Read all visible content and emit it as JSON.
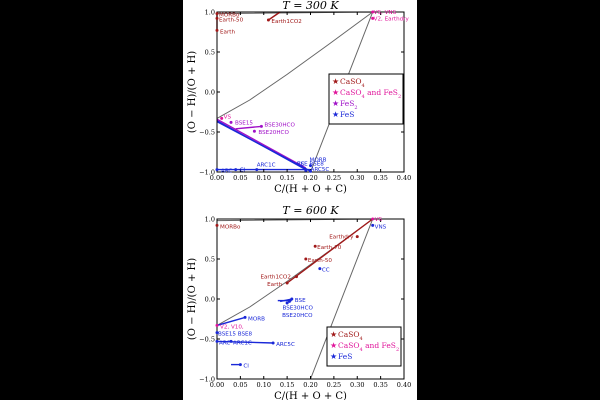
{
  "chart_data": [
    {
      "type": "scatter",
      "title": "T = 300 K",
      "xlabel": "C/(H + O + C)",
      "ylabel": "(O − H)/(O + H)",
      "xlim": [
        0.0,
        0.4
      ],
      "ylim": [
        -1.0,
        1.0
      ],
      "xticks": [
        "0.00",
        "0.05",
        "0.10",
        "0.15",
        "0.20",
        "0.25",
        "0.30",
        "0.35",
        "0.40"
      ],
      "yticks": [
        "−1.0",
        "−0.5",
        "0.0",
        "0.5",
        "1.0"
      ],
      "boundary": [
        [
          0.0,
          0.98
        ],
        [
          0.0,
          -1.0
        ],
        [
          0.2,
          -1.0
        ],
        [
          0.333,
          1.0
        ],
        [
          0.0,
          0.98
        ]
      ],
      "curve": [
        [
          0.0,
          -0.33
        ],
        [
          0.07,
          -0.1
        ],
        [
          0.15,
          0.22
        ],
        [
          0.24,
          0.6
        ],
        [
          0.333,
          1.0
        ]
      ],
      "legend": {
        "placement": "center-right",
        "entries": [
          {
            "label": "CaSO",
            "sub": "4",
            "mid": "",
            "sub2": "",
            "color": "#a01818"
          },
          {
            "label": "CaSO",
            "sub": "4",
            "mid": " and FeS",
            "sub2": "2",
            "color": "#e0139a"
          },
          {
            "label": "FeS",
            "sub": "2",
            "mid": "",
            "sub2": "",
            "color": "#a010c8"
          },
          {
            "label": "FeS",
            "sub": "",
            "mid": "",
            "sub2": "",
            "color": "#1a28d8"
          }
        ]
      },
      "points": [
        {
          "label": "MORBo",
          "x": 0.0,
          "y": 0.98,
          "color": "#a01818",
          "dx": 2,
          "dy": 3
        },
        {
          "label": "Earth-50",
          "x": 0.0,
          "y": 0.92,
          "color": "#a01818",
          "dx": 2,
          "dy": 3
        },
        {
          "label": "Earth",
          "x": 0.0,
          "y": 0.77,
          "color": "#a01818",
          "dx": 3,
          "dy": 3
        },
        {
          "label": "Earth1CO2",
          "x": 0.11,
          "y": 0.9,
          "color": "#a01818",
          "dx": 3,
          "dy": 3
        },
        {
          "label": "VS, VNS",
          "x": 0.333,
          "y": 1.0,
          "color": "#e0139a",
          "dx": 1,
          "dy": 2
        },
        {
          "label": "V2, Earthdry",
          "x": 0.333,
          "y": 0.92,
          "color": "#e0139a",
          "dx": 1,
          "dy": 2
        },
        {
          "label": "VS",
          "x": 0.01,
          "y": -0.33,
          "color": "#e0139a",
          "dx": 2,
          "dy": 0
        },
        {
          "label": "BSE15",
          "x": 0.03,
          "y": -0.38,
          "color": "#a010c8",
          "dx": 4,
          "dy": 2
        },
        {
          "label": "BSE30HCO",
          "x": 0.095,
          "y": -0.43,
          "color": "#a010c8",
          "dx": 3,
          "dy": 0
        },
        {
          "label": "BSE20HCO",
          "x": 0.08,
          "y": -0.49,
          "color": "#a010c8",
          "dx": 4,
          "dy": 3
        },
        {
          "label": "ARC",
          "x": 0.0,
          "y": -0.97,
          "color": "#1a28d8",
          "dx": 4,
          "dy": 3
        },
        {
          "label": "CI",
          "x": 0.04,
          "y": -0.97,
          "color": "#1a28d8",
          "dx": 4,
          "dy": 2
        },
        {
          "label": "ARC1C",
          "x": 0.085,
          "y": -0.97,
          "color": "#1a28d8",
          "dx": 0,
          "dy": -3
        },
        {
          "label": "CC",
          "x": 0.19,
          "y": -0.97,
          "color": "#1a28d8",
          "dx": -9,
          "dy": -4
        },
        {
          "label": "MORB",
          "x": 0.2,
          "y": -0.92,
          "color": "#1a28d8",
          "dx": -1,
          "dy": -4
        },
        {
          "label": "BSE BSE8",
          "x": 0.19,
          "y": -0.98,
          "color": "#1a28d8",
          "dx": -9,
          "dy": -5
        },
        {
          "label": "ARC5C",
          "x": 0.2,
          "y": -0.99,
          "color": "#1a28d8",
          "dx": 0,
          "dy": 0
        }
      ],
      "segments": [
        {
          "from": [
            0.0,
            0.98
          ],
          "to": [
            0.0,
            0.77
          ],
          "color": "#a01818"
        },
        {
          "from": [
            0.11,
            0.9
          ],
          "to": [
            0.135,
            1.0
          ],
          "color": "#a01818"
        },
        {
          "from": [
            0.0,
            -0.36
          ],
          "to": [
            0.19,
            -0.97
          ],
          "color": "#1a28d8"
        },
        {
          "from": [
            0.0,
            -0.34
          ],
          "to": [
            0.19,
            -0.95
          ],
          "color": "#a010c8"
        },
        {
          "from": [
            0.0,
            -0.37
          ],
          "to": [
            0.2,
            -0.99
          ],
          "color": "#1a28d8"
        },
        {
          "from": [
            0.04,
            -0.46
          ],
          "to": [
            0.095,
            -0.43
          ],
          "color": "#a010c8"
        },
        {
          "from": [
            0.0,
            -0.97
          ],
          "to": [
            0.2,
            -0.97
          ],
          "color": "#1a28d8"
        }
      ]
    },
    {
      "type": "scatter",
      "title": "T = 600 K",
      "xlabel": "C/(H + O + C)",
      "ylabel": "(O − H)/(O + H)",
      "xlim": [
        0.0,
        0.4
      ],
      "ylim": [
        -1.0,
        1.0
      ],
      "xticks": [
        "0.00",
        "0.05",
        "0.10",
        "0.15",
        "0.20",
        "0.25",
        "0.30",
        "0.35",
        "0.40"
      ],
      "yticks": [
        "−1.0",
        "−0.5",
        "0.0",
        "0.5",
        "1.0"
      ],
      "boundary": [
        [
          0.0,
          0.98
        ],
        [
          0.0,
          -1.0
        ],
        [
          0.2,
          -1.0
        ],
        [
          0.333,
          1.0
        ],
        [
          0.0,
          0.98
        ]
      ],
      "curve": [
        [
          0.0,
          -0.33
        ],
        [
          0.07,
          -0.1
        ],
        [
          0.15,
          0.22
        ],
        [
          0.24,
          0.6
        ],
        [
          0.333,
          1.0
        ]
      ],
      "legend": {
        "placement": "lower-right",
        "entries": [
          {
            "label": "CaSO",
            "sub": "4",
            "mid": "",
            "sub2": "",
            "color": "#a01818"
          },
          {
            "label": "CaSO",
            "sub": "4",
            "mid": " and FeS",
            "sub2": "2",
            "color": "#e0139a"
          },
          {
            "label": "FeS",
            "sub": "",
            "mid": "",
            "sub2": "",
            "color": "#1a28d8"
          }
        ]
      },
      "points": [
        {
          "label": "MORBo",
          "x": 0.0,
          "y": 0.92,
          "color": "#a01818",
          "dx": 3,
          "dy": 3
        },
        {
          "label": "VS",
          "x": 0.333,
          "y": 1.0,
          "color": "#e0139a",
          "dx": 2,
          "dy": 2
        },
        {
          "label": "VNS",
          "x": 0.333,
          "y": 0.92,
          "color": "#1a28d8",
          "dx": 2,
          "dy": 3
        },
        {
          "label": "Earthdry",
          "x": 0.3,
          "y": 0.78,
          "color": "#a01818",
          "dx": -28,
          "dy": 2
        },
        {
          "label": "Earth-70",
          "x": 0.21,
          "y": 0.66,
          "color": "#a01818",
          "dx": 2,
          "dy": 3
        },
        {
          "label": "Earth-50",
          "x": 0.19,
          "y": 0.5,
          "color": "#a01818",
          "dx": 2,
          "dy": 3
        },
        {
          "label": "CC",
          "x": 0.22,
          "y": 0.38,
          "color": "#1a28d8",
          "dx": 2,
          "dy": 3
        },
        {
          "label": "Earth1CO2",
          "x": 0.17,
          "y": 0.28,
          "color": "#a01818",
          "dx": -36,
          "dy": 2
        },
        {
          "label": "Earth",
          "x": 0.15,
          "y": 0.2,
          "color": "#a01818",
          "dx": -20,
          "dy": 3
        },
        {
          "label": "BSE",
          "x": 0.16,
          "y": 0.0,
          "color": "#1a28d8",
          "dx": 3,
          "dy": 3
        },
        {
          "label": "BSE30HCO",
          "x": 0.155,
          "y": -0.03,
          "color": "#1a28d8",
          "dx": -7,
          "dy": 8
        },
        {
          "label": "BSE20HCO",
          "x": 0.15,
          "y": -0.05,
          "color": "#1a28d8",
          "dx": -5,
          "dy": 14
        },
        {
          "label": "MORB",
          "x": 0.06,
          "y": -0.23,
          "color": "#1a28d8",
          "dx": 3,
          "dy": 3
        },
        {
          "label": "V2, V10,",
          "x": 0.0,
          "y": -0.33,
          "color": "#e0139a",
          "dx": 3,
          "dy": 3
        },
        {
          "label": "BSE15 BSE8",
          "x": 0.0,
          "y": -0.42,
          "color": "#1a28d8",
          "dx": 1,
          "dy": 3
        },
        {
          "label": "ARC",
          "x": 0.0,
          "y": -0.53,
          "color": "#1a28d8",
          "dx": 2,
          "dy": 3
        },
        {
          "label": "ARC1C",
          "x": 0.03,
          "y": -0.53,
          "color": "#1a28d8",
          "dx": 2,
          "dy": 3
        },
        {
          "label": "ARC5C",
          "x": 0.12,
          "y": -0.55,
          "color": "#1a28d8",
          "dx": 3,
          "dy": 3
        },
        {
          "label": "CI",
          "x": 0.05,
          "y": -0.82,
          "color": "#1a28d8",
          "dx": 3,
          "dy": 3
        }
      ],
      "segments": [
        {
          "from": [
            0.15,
            0.2
          ],
          "to": [
            0.333,
            1.0
          ],
          "color": "#a01818"
        },
        {
          "from": [
            0.0,
            -0.33
          ],
          "to": [
            0.06,
            -0.23
          ],
          "color": "#1a28d8"
        },
        {
          "from": [
            0.0,
            -0.53
          ],
          "to": [
            0.12,
            -0.55
          ],
          "color": "#1a28d8"
        },
        {
          "from": [
            0.135,
            -0.03
          ],
          "to": [
            0.16,
            0.0
          ],
          "color": "#1a28d8"
        },
        {
          "from": [
            0.13,
            -0.02
          ],
          "to": [
            0.16,
            -0.02
          ],
          "color": "#1a28d8"
        },
        {
          "from": [
            0.03,
            -0.82
          ],
          "to": [
            0.05,
            -0.82
          ],
          "color": "#1a28d8"
        }
      ]
    }
  ]
}
